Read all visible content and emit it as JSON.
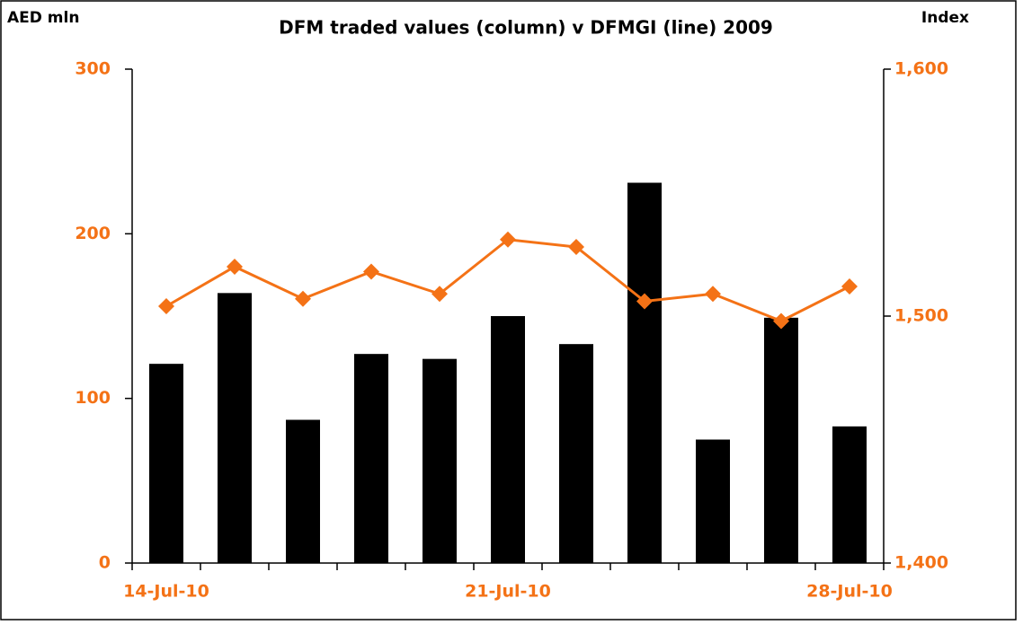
{
  "chart_data": {
    "type": "bar-line",
    "title": "DFM traded values (column) v DFMGI (line) 2009",
    "y_label": "AED mln",
    "y2_label": "Index",
    "categories": [
      "14-Jul-10",
      null,
      null,
      null,
      null,
      "21-Jul-10",
      null,
      null,
      null,
      null,
      "28-Jul-10"
    ],
    "series": [
      {
        "type": "bar",
        "color": "#000000",
        "values": [
          121,
          164,
          87,
          127,
          124,
          150,
          133,
          231,
          75,
          149,
          83
        ]
      },
      {
        "type": "line",
        "color": "#f47216",
        "axis": "y2",
        "values": [
          1504,
          1520,
          1507,
          1518,
          1509,
          1531,
          1528,
          1506,
          1509,
          1498,
          1512
        ]
      }
    ],
    "ylim": [
      0,
      300
    ],
    "yticks": [
      0,
      100,
      200,
      300
    ],
    "y2lim": [
      1400,
      1600
    ],
    "y2ticks": [
      {
        "value": 1400,
        "label": "1,400"
      },
      {
        "value": 1500,
        "label": "1,500"
      },
      {
        "value": 1600,
        "label": "1,600"
      }
    ],
    "tick_color": "#f47216"
  }
}
